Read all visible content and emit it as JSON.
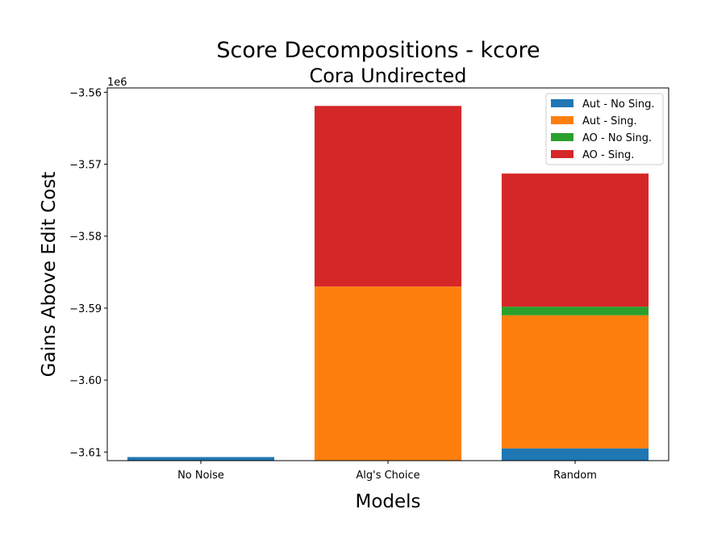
{
  "chart_data": {
    "type": "bar",
    "stacked": true,
    "title": "Score Decompositions - kcore",
    "subtitle": "Cora Undirected",
    "xlabel": "Models",
    "ylabel": "Gains Above Edit Cost",
    "y_offset_label": "1e6",
    "ylim": [
      -3.6112,
      -3.5594
    ],
    "yticks": [
      -3.56,
      -3.57,
      -3.58,
      -3.59,
      -3.6,
      -3.61
    ],
    "ytick_labels": [
      "−3.56",
      "−3.57",
      "−3.58",
      "−3.59",
      "−3.60",
      "−3.61"
    ],
    "categories": [
      "No Noise",
      "Alg's Choice",
      "Random"
    ],
    "legend_position": "top-right",
    "series": [
      {
        "name": "Aut - No Sing.",
        "color": "#1f77b4",
        "ranges": [
          [
            -3.6112,
            -3.6107
          ],
          [
            -3.6112,
            -3.6112
          ],
          [
            -3.6112,
            -3.6095
          ]
        ]
      },
      {
        "name": "Aut - Sing.",
        "color": "#ff7f0e",
        "ranges": [
          [
            -3.6107,
            -3.6107
          ],
          [
            -3.6112,
            -3.587
          ],
          [
            -3.6095,
            -3.591
          ]
        ]
      },
      {
        "name": "AO - No Sing.",
        "color": "#2ca02c",
        "ranges": [
          [
            -3.6107,
            -3.6107
          ],
          [
            -3.587,
            -3.587
          ],
          [
            -3.591,
            -3.5898
          ]
        ]
      },
      {
        "name": "AO - Sing.",
        "color": "#d62728",
        "ranges": [
          [
            -3.6107,
            -3.6107
          ],
          [
            -3.587,
            -3.5619
          ],
          [
            -3.5898,
            -3.5713
          ]
        ]
      }
    ]
  }
}
